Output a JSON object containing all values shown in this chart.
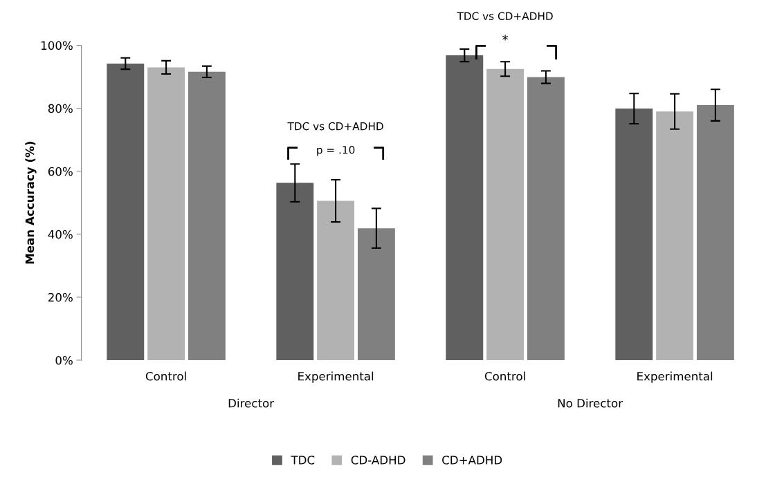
{
  "chart_data": {
    "type": "bar",
    "ylabel": "Mean Accuracy (%)",
    "categories": [
      "Control",
      "Experimental",
      "Control",
      "Experimental"
    ],
    "series": [
      {
        "name": "TDC",
        "color": "#606060",
        "values": [
          94.2,
          56.3,
          96.8,
          79.9
        ],
        "errors": [
          1.8,
          6.0,
          2.0,
          4.8
        ]
      },
      {
        "name": "CD-ADHD",
        "color": "#b2b2b2",
        "values": [
          93.0,
          50.6,
          92.5,
          79.0
        ],
        "errors": [
          2.1,
          6.7,
          2.3,
          5.6
        ]
      },
      {
        "name": "CD+ADHD",
        "color": "#808080",
        "values": [
          91.6,
          41.9,
          89.9,
          81.0
        ],
        "errors": [
          1.8,
          6.3,
          2.0,
          5.0
        ]
      }
    ],
    "ylim": [
      0,
      100
    ],
    "yticks": [
      {
        "value": 0,
        "label": "0%"
      },
      {
        "value": 20,
        "label": "20%"
      },
      {
        "value": 40,
        "label": "40%"
      },
      {
        "value": 60,
        "label": "60%"
      },
      {
        "value": 80,
        "label": "80%"
      },
      {
        "value": 100,
        "label": "100%"
      }
    ],
    "annotations": [
      "Director",
      "No Director",
      "TDC vs CD+ADHD",
      "p = .10",
      "TDC vs CD+ADHD",
      "*"
    ],
    "grid": false,
    "legend": "bottom"
  }
}
